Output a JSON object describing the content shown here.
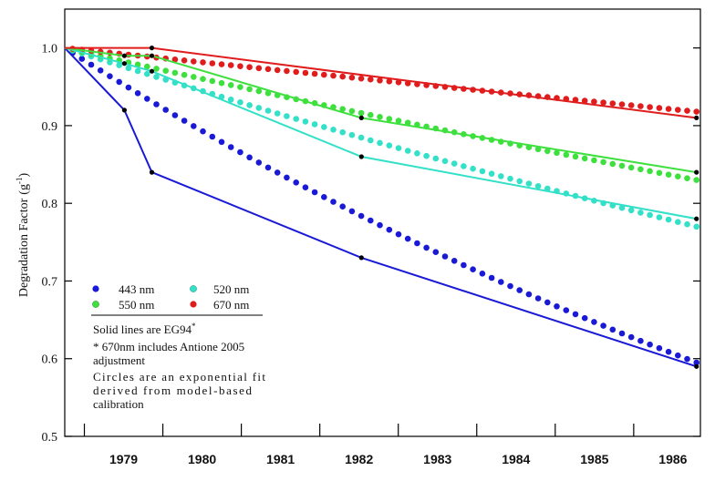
{
  "chart_data": {
    "type": "line",
    "title": "",
    "xlabel": "",
    "ylabel": "Degradation Factor",
    "ylabel_unit": "(g",
    "ylabel_unit_sup": "-1",
    "ylabel_unit_close": ")",
    "xlim": [
      1978.25,
      1986.35
    ],
    "ylim": [
      0.5,
      1.05
    ],
    "x_ticks": [
      1979,
      1980,
      1981,
      1982,
      1983,
      1984,
      1985,
      1986
    ],
    "x_tick_labels": [
      "1979",
      "1980",
      "1981",
      "1982",
      "1983",
      "1984",
      "1985",
      "1986"
    ],
    "y_ticks": [
      0.5,
      0.6,
      0.7,
      0.8,
      0.9,
      1.0
    ],
    "y_tick_labels": [
      "0.5",
      "0.6",
      "0.7",
      "0.8",
      "0.9",
      "1.0"
    ],
    "grid": false,
    "legend_position": "bottom-left",
    "series": [
      {
        "name": "443 nm",
        "color": "#1a1ad6",
        "line_points": [
          [
            1978.25,
            1.0
          ],
          [
            1979.01,
            0.92
          ],
          [
            1979.36,
            0.84
          ],
          [
            1982.03,
            0.73
          ],
          [
            1986.3,
            0.59
          ]
        ],
        "fit_start": [
          1978.25,
          1.0
        ],
        "fit_end": [
          1986.3,
          0.595
        ]
      },
      {
        "name": "520 nm",
        "color": "#33e0c8",
        "line_points": [
          [
            1978.25,
            1.0
          ],
          [
            1979.01,
            0.98
          ],
          [
            1979.36,
            0.97
          ],
          [
            1982.03,
            0.86
          ],
          [
            1986.3,
            0.78
          ]
        ],
        "fit_start": [
          1978.25,
          1.0
        ],
        "fit_end": [
          1986.3,
          0.77
        ]
      },
      {
        "name": "550 nm",
        "color": "#3ee03e",
        "line_points": [
          [
            1978.25,
            1.0
          ],
          [
            1979.01,
            0.99
          ],
          [
            1979.36,
            0.99
          ],
          [
            1982.03,
            0.91
          ],
          [
            1986.3,
            0.84
          ]
        ],
        "fit_start": [
          1978.25,
          1.0
        ],
        "fit_end": [
          1986.3,
          0.83
        ]
      },
      {
        "name": "670 nm",
        "color": "#e01c1c",
        "line_points": [
          [
            1978.25,
            1.0
          ],
          [
            1979.36,
            1.0
          ],
          [
            1986.3,
            0.91
          ]
        ],
        "fit_start": [
          1978.25,
          1.0
        ],
        "fit_end": [
          1986.3,
          0.918
        ]
      }
    ],
    "calibration_markers": [
      [
        1979.01,
        0.92
      ],
      [
        1979.01,
        0.98
      ],
      [
        1979.01,
        0.99
      ],
      [
        1979.36,
        0.84
      ],
      [
        1979.36,
        0.97
      ],
      [
        1979.36,
        0.99
      ],
      [
        1979.36,
        1.0
      ],
      [
        1982.03,
        0.73
      ],
      [
        1982.03,
        0.86
      ],
      [
        1982.03,
        0.91
      ],
      [
        1986.3,
        0.59
      ],
      [
        1986.3,
        0.78
      ],
      [
        1986.3,
        0.84
      ],
      [
        1986.3,
        0.91
      ]
    ],
    "legend_entries": [
      "443 nm",
      "520 nm",
      "550 nm",
      "670 nm"
    ],
    "annotations": {
      "solid_lines_prefix": "Solid lines are EG94",
      "solid_lines_sup": "*",
      "note_670_line1": "* 670nm includes Antione 2005",
      "note_670_line2": "adjustment",
      "circles_line1": "Circles are an exponential fit",
      "circles_line2": "derived from model-based",
      "circles_line3": "calibration"
    }
  }
}
